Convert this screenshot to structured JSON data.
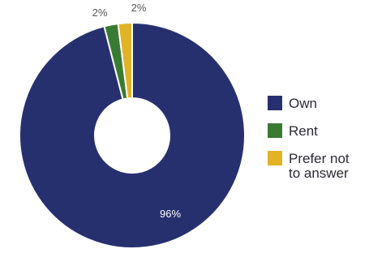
{
  "chart_data": {
    "type": "pie",
    "donut": true,
    "categories": [
      "Own",
      "Rent",
      "Prefer not to answer"
    ],
    "values": [
      96,
      2,
      2
    ],
    "data_labels": [
      "96%",
      "2%",
      "2%"
    ],
    "colors": [
      "#27306f",
      "#3a7b34",
      "#e2b227"
    ],
    "legend": {
      "position": "right",
      "entries": [
        {
          "lines": [
            "Own"
          ]
        },
        {
          "lines": [
            "Rent"
          ]
        },
        {
          "lines": [
            "Prefer not",
            "to answer"
          ]
        }
      ]
    }
  }
}
